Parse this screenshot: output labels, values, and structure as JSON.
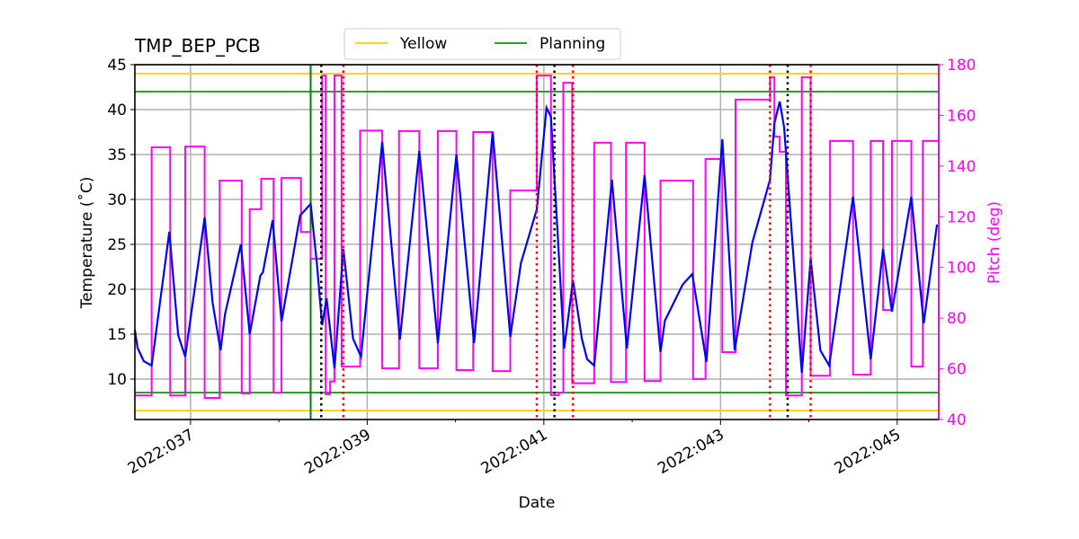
{
  "chart_data": {
    "type": "line",
    "title": "TMP_BEP_PCB",
    "xlabel": "Date",
    "ylabel": "Temperature (˚C)",
    "y2label": "Pitch (deg)",
    "xlim": [
      36.37,
      45.47
    ],
    "ylim": [
      5.5,
      45
    ],
    "y2lim": [
      40,
      180
    ],
    "grid": true,
    "xticks": [
      {
        "v": 37,
        "label": "2022:037"
      },
      {
        "v": 39,
        "label": "2022:039"
      },
      {
        "v": 41,
        "label": "2022:041"
      },
      {
        "v": 43,
        "label": "2022:043"
      },
      {
        "v": 45,
        "label": "2022:045"
      }
    ],
    "xminor": [
      38,
      40,
      42,
      44
    ],
    "yticks": [
      10,
      15,
      20,
      25,
      30,
      35,
      40,
      45
    ],
    "y2ticks": [
      40,
      60,
      80,
      100,
      120,
      140,
      160,
      180
    ],
    "legend": {
      "placement": "top-center",
      "entries": [
        {
          "name": "Yellow",
          "color": "#ffd21f"
        },
        {
          "name": "Planning",
          "color": "#2ca02c"
        }
      ]
    },
    "limits": {
      "yellow": [
        44,
        6.5
      ],
      "planning": [
        42,
        8.5
      ]
    },
    "colors": {
      "temperature": "#0000ff",
      "pitch": "#ff00ff",
      "planning_vline": "#008000",
      "black_lines": "#000000",
      "red_lines": "#ff0000"
    },
    "planning_vline": 38.36,
    "black_dotted": [
      38.48,
      41.12,
      43.76
    ],
    "red_dotted": [
      38.73,
      40.92,
      41.33,
      43.56,
      44.02
    ],
    "temperature": [
      [
        36.37,
        15.5
      ],
      [
        36.4,
        13.5
      ],
      [
        36.47,
        12.0
      ],
      [
        36.56,
        11.5
      ],
      [
        36.76,
        26.4
      ],
      [
        36.86,
        14.9
      ],
      [
        36.94,
        12.5
      ],
      [
        37.16,
        28.0
      ],
      [
        37.25,
        18.5
      ],
      [
        37.34,
        13.2
      ],
      [
        37.39,
        17.2
      ],
      [
        37.57,
        25.0
      ],
      [
        37.67,
        15.0
      ],
      [
        37.79,
        21.5
      ],
      [
        37.82,
        21.9
      ],
      [
        37.93,
        27.7
      ],
      [
        38.03,
        16.4
      ],
      [
        38.24,
        28.2
      ],
      [
        38.36,
        29.5
      ],
      [
        38.43,
        22.9
      ],
      [
        38.49,
        16.0
      ],
      [
        38.54,
        19.0
      ],
      [
        38.63,
        11.2
      ],
      [
        38.73,
        24.5
      ],
      [
        38.84,
        14.5
      ],
      [
        38.93,
        12.5
      ],
      [
        39.17,
        36.4
      ],
      [
        39.37,
        14.4
      ],
      [
        39.59,
        35.4
      ],
      [
        39.8,
        14.0
      ],
      [
        40.01,
        35.0
      ],
      [
        40.21,
        14.0
      ],
      [
        40.42,
        37.5
      ],
      [
        40.62,
        14.7
      ],
      [
        40.74,
        22.9
      ],
      [
        40.92,
        28.9
      ],
      [
        41.03,
        40.2
      ],
      [
        41.08,
        39.2
      ],
      [
        41.23,
        13.4
      ],
      [
        41.33,
        21.0
      ],
      [
        41.43,
        14.5
      ],
      [
        41.49,
        12.2
      ],
      [
        41.57,
        11.5
      ],
      [
        41.77,
        32.2
      ],
      [
        41.94,
        13.4
      ],
      [
        42.14,
        32.7
      ],
      [
        42.32,
        13.0
      ],
      [
        42.37,
        16.5
      ],
      [
        42.57,
        20.5
      ],
      [
        42.68,
        21.7
      ],
      [
        42.84,
        11.9
      ],
      [
        43.02,
        36.7
      ],
      [
        43.16,
        13.2
      ],
      [
        43.36,
        25.2
      ],
      [
        43.56,
        32.2
      ],
      [
        43.61,
        38.5
      ],
      [
        43.67,
        40.9
      ],
      [
        43.72,
        38.0
      ],
      [
        43.92,
        10.7
      ],
      [
        44.02,
        23.4
      ],
      [
        44.13,
        13.2
      ],
      [
        44.23,
        11.5
      ],
      [
        44.5,
        30.3
      ],
      [
        44.7,
        12.2
      ],
      [
        44.84,
        24.5
      ],
      [
        44.94,
        17.5
      ],
      [
        45.16,
        30.3
      ],
      [
        45.3,
        16.2
      ],
      [
        45.45,
        27.2
      ]
    ],
    "pitch_steps": [
      [
        36.37,
        49.5
      ],
      [
        36.56,
        147.4
      ],
      [
        36.77,
        49.5
      ],
      [
        36.94,
        147.7
      ],
      [
        37.16,
        48.5
      ],
      [
        37.33,
        134.3
      ],
      [
        37.58,
        50.3
      ],
      [
        37.67,
        123
      ],
      [
        37.8,
        135
      ],
      [
        37.94,
        50.6
      ],
      [
        38.03,
        135.3
      ],
      [
        38.25,
        114
      ],
      [
        38.36,
        103.4
      ],
      [
        38.49,
        175.7
      ],
      [
        38.53,
        50
      ],
      [
        38.58,
        55
      ],
      [
        38.63,
        175.7
      ],
      [
        38.71,
        60.9
      ],
      [
        38.92,
        154
      ],
      [
        39.17,
        60.2
      ],
      [
        39.36,
        153.8
      ],
      [
        39.59,
        60.2
      ],
      [
        39.8,
        153.8
      ],
      [
        40.01,
        59.5
      ],
      [
        40.2,
        153.4
      ],
      [
        40.42,
        59.1
      ],
      [
        40.62,
        130.4
      ],
      [
        40.92,
        175.7
      ],
      [
        41.08,
        49.6
      ],
      [
        41.17,
        50.6
      ],
      [
        41.22,
        172.9
      ],
      [
        41.32,
        54.3
      ],
      [
        41.57,
        149.2
      ],
      [
        41.76,
        54.8
      ],
      [
        41.93,
        149.2
      ],
      [
        42.14,
        55.2
      ],
      [
        42.32,
        134.3
      ],
      [
        42.69,
        56
      ],
      [
        42.83,
        142.8
      ],
      [
        43.02,
        66.6
      ],
      [
        43.17,
        166.2
      ],
      [
        43.56,
        175
      ],
      [
        43.61,
        151.6
      ],
      [
        43.67,
        145.6
      ],
      [
        43.74,
        49.5
      ],
      [
        43.92,
        175
      ],
      [
        44.02,
        57.3
      ],
      [
        44.24,
        149.9
      ],
      [
        44.5,
        57.7
      ],
      [
        44.7,
        149.9
      ],
      [
        44.84,
        83.2
      ],
      [
        44.94,
        149.9
      ],
      [
        45.16,
        60.9
      ],
      [
        45.29,
        149.9
      ],
      [
        45.47,
        149.9
      ]
    ]
  }
}
